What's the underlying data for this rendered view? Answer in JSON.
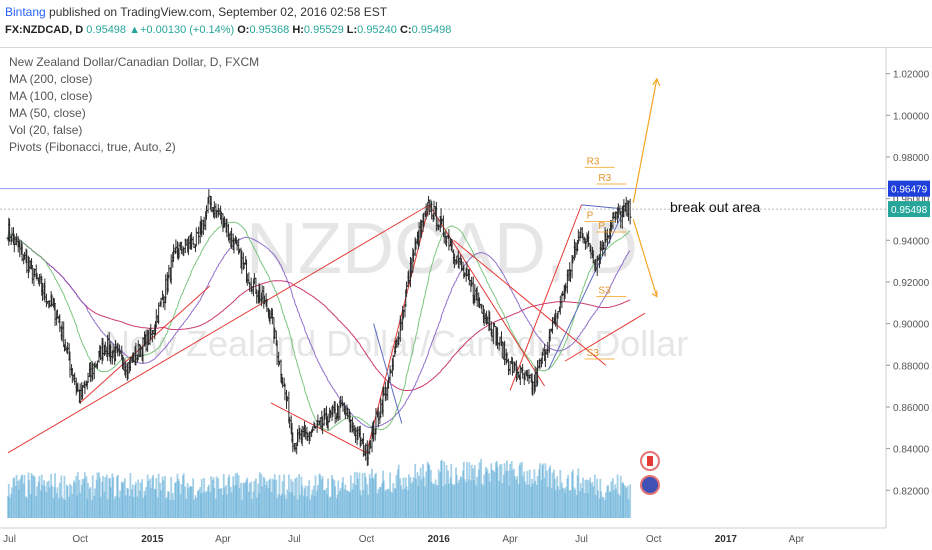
{
  "header": {
    "user": "Bintang",
    "published": " published on TradingView.com, September 02, 2016 02:58 EST",
    "symbol": "FX:NZDCAD, D",
    "last": "0.95498",
    "arrow": "▲",
    "change": "+0.00130 (+0.14%)",
    "o_label": "O:",
    "o": "0.95368",
    "h_label": "H:",
    "h": "0.95529",
    "l_label": "L:",
    "l": "0.95240",
    "c_label": "C:",
    "c": "0.95498"
  },
  "indicators": [
    "New Zealand Dollar/Canadian Dollar, D, FXCM",
    "MA (200, close)",
    "MA (100, close)",
    "MA (50, close)",
    "Vol (20, false)",
    "Pivots (Fibonacci, true, Auto, 2)"
  ],
  "watermark": {
    "symbol": "NZDCAD, D",
    "name": "New Zealand Dollar/Canadian Dollar"
  },
  "annotation": "break out area",
  "pivot_labels": [
    "R3",
    "R3",
    "P",
    "P",
    "S3",
    "S3"
  ],
  "colors": {
    "price_bar": "#2b2b2b",
    "ma200": "#c2185b",
    "ma100": "#7e57c2",
    "ma50": "#66bb6a",
    "volume": "#5aa9d6",
    "trend": "#e53935",
    "blue_line": "#5c6bc0",
    "arrow": "#f5a623",
    "last_price_tag": "#26a69a",
    "horizontal_tag": "#1e3fdc"
  },
  "chart_data": {
    "type": "candlestick",
    "y_axis": {
      "ticks": [
        "0.82000",
        "0.84000",
        "0.86000",
        "0.88000",
        "0.90000",
        "0.92000",
        "0.94000",
        "0.96000",
        "0.98000",
        "1.00000",
        "1.02000"
      ],
      "range": [
        0.8115,
        1.0275
      ]
    },
    "x_axis": {
      "ticks": [
        {
          "label": "Jul",
          "bold": false
        },
        {
          "label": "Oct",
          "bold": false
        },
        {
          "label": "2015",
          "bold": true
        },
        {
          "label": "Apr",
          "bold": false
        },
        {
          "label": "Jul",
          "bold": false
        },
        {
          "label": "Oct",
          "bold": false
        },
        {
          "label": "2016",
          "bold": true
        },
        {
          "label": "Apr",
          "bold": false
        },
        {
          "label": "Jul",
          "bold": false
        },
        {
          "label": "Oct",
          "bold": false
        },
        {
          "label": "2017",
          "bold": true
        },
        {
          "label": "Apr",
          "bold": false
        }
      ]
    },
    "last_price": 0.95498,
    "horizontal_level": 0.96479,
    "price_path": [
      [
        "2014-07-01",
        0.945
      ],
      [
        "2014-08-01",
        0.925
      ],
      [
        "2014-09-01",
        0.905
      ],
      [
        "2014-10-01",
        0.864
      ],
      [
        "2014-11-01",
        0.89
      ],
      [
        "2014-12-01",
        0.88
      ],
      [
        "2015-01-01",
        0.895
      ],
      [
        "2015-02-01",
        0.935
      ],
      [
        "2015-03-01",
        0.94
      ],
      [
        "2015-03-15",
        0.958
      ],
      [
        "2015-04-01",
        0.95
      ],
      [
        "2015-05-01",
        0.925
      ],
      [
        "2015-06-01",
        0.905
      ],
      [
        "2015-07-01",
        0.843
      ],
      [
        "2015-08-01",
        0.85
      ],
      [
        "2015-09-01",
        0.86
      ],
      [
        "2015-10-01",
        0.838
      ],
      [
        "2015-11-01",
        0.875
      ],
      [
        "2015-12-01",
        0.935
      ],
      [
        "2015-12-20",
        0.957
      ],
      [
        "2016-01-15",
        0.94
      ],
      [
        "2016-02-01",
        0.925
      ],
      [
        "2016-03-01",
        0.905
      ],
      [
        "2016-04-01",
        0.88
      ],
      [
        "2016-05-01",
        0.87
      ],
      [
        "2016-06-01",
        0.905
      ],
      [
        "2016-07-01",
        0.945
      ],
      [
        "2016-07-20",
        0.93
      ],
      [
        "2016-08-10",
        0.95
      ],
      [
        "2016-09-02",
        0.95498
      ]
    ],
    "series": [
      {
        "name": "MA (200, close)"
      },
      {
        "name": "MA (100, close)"
      },
      {
        "name": "MA (50, close)"
      },
      {
        "name": "Vol (20, false)"
      }
    ]
  }
}
